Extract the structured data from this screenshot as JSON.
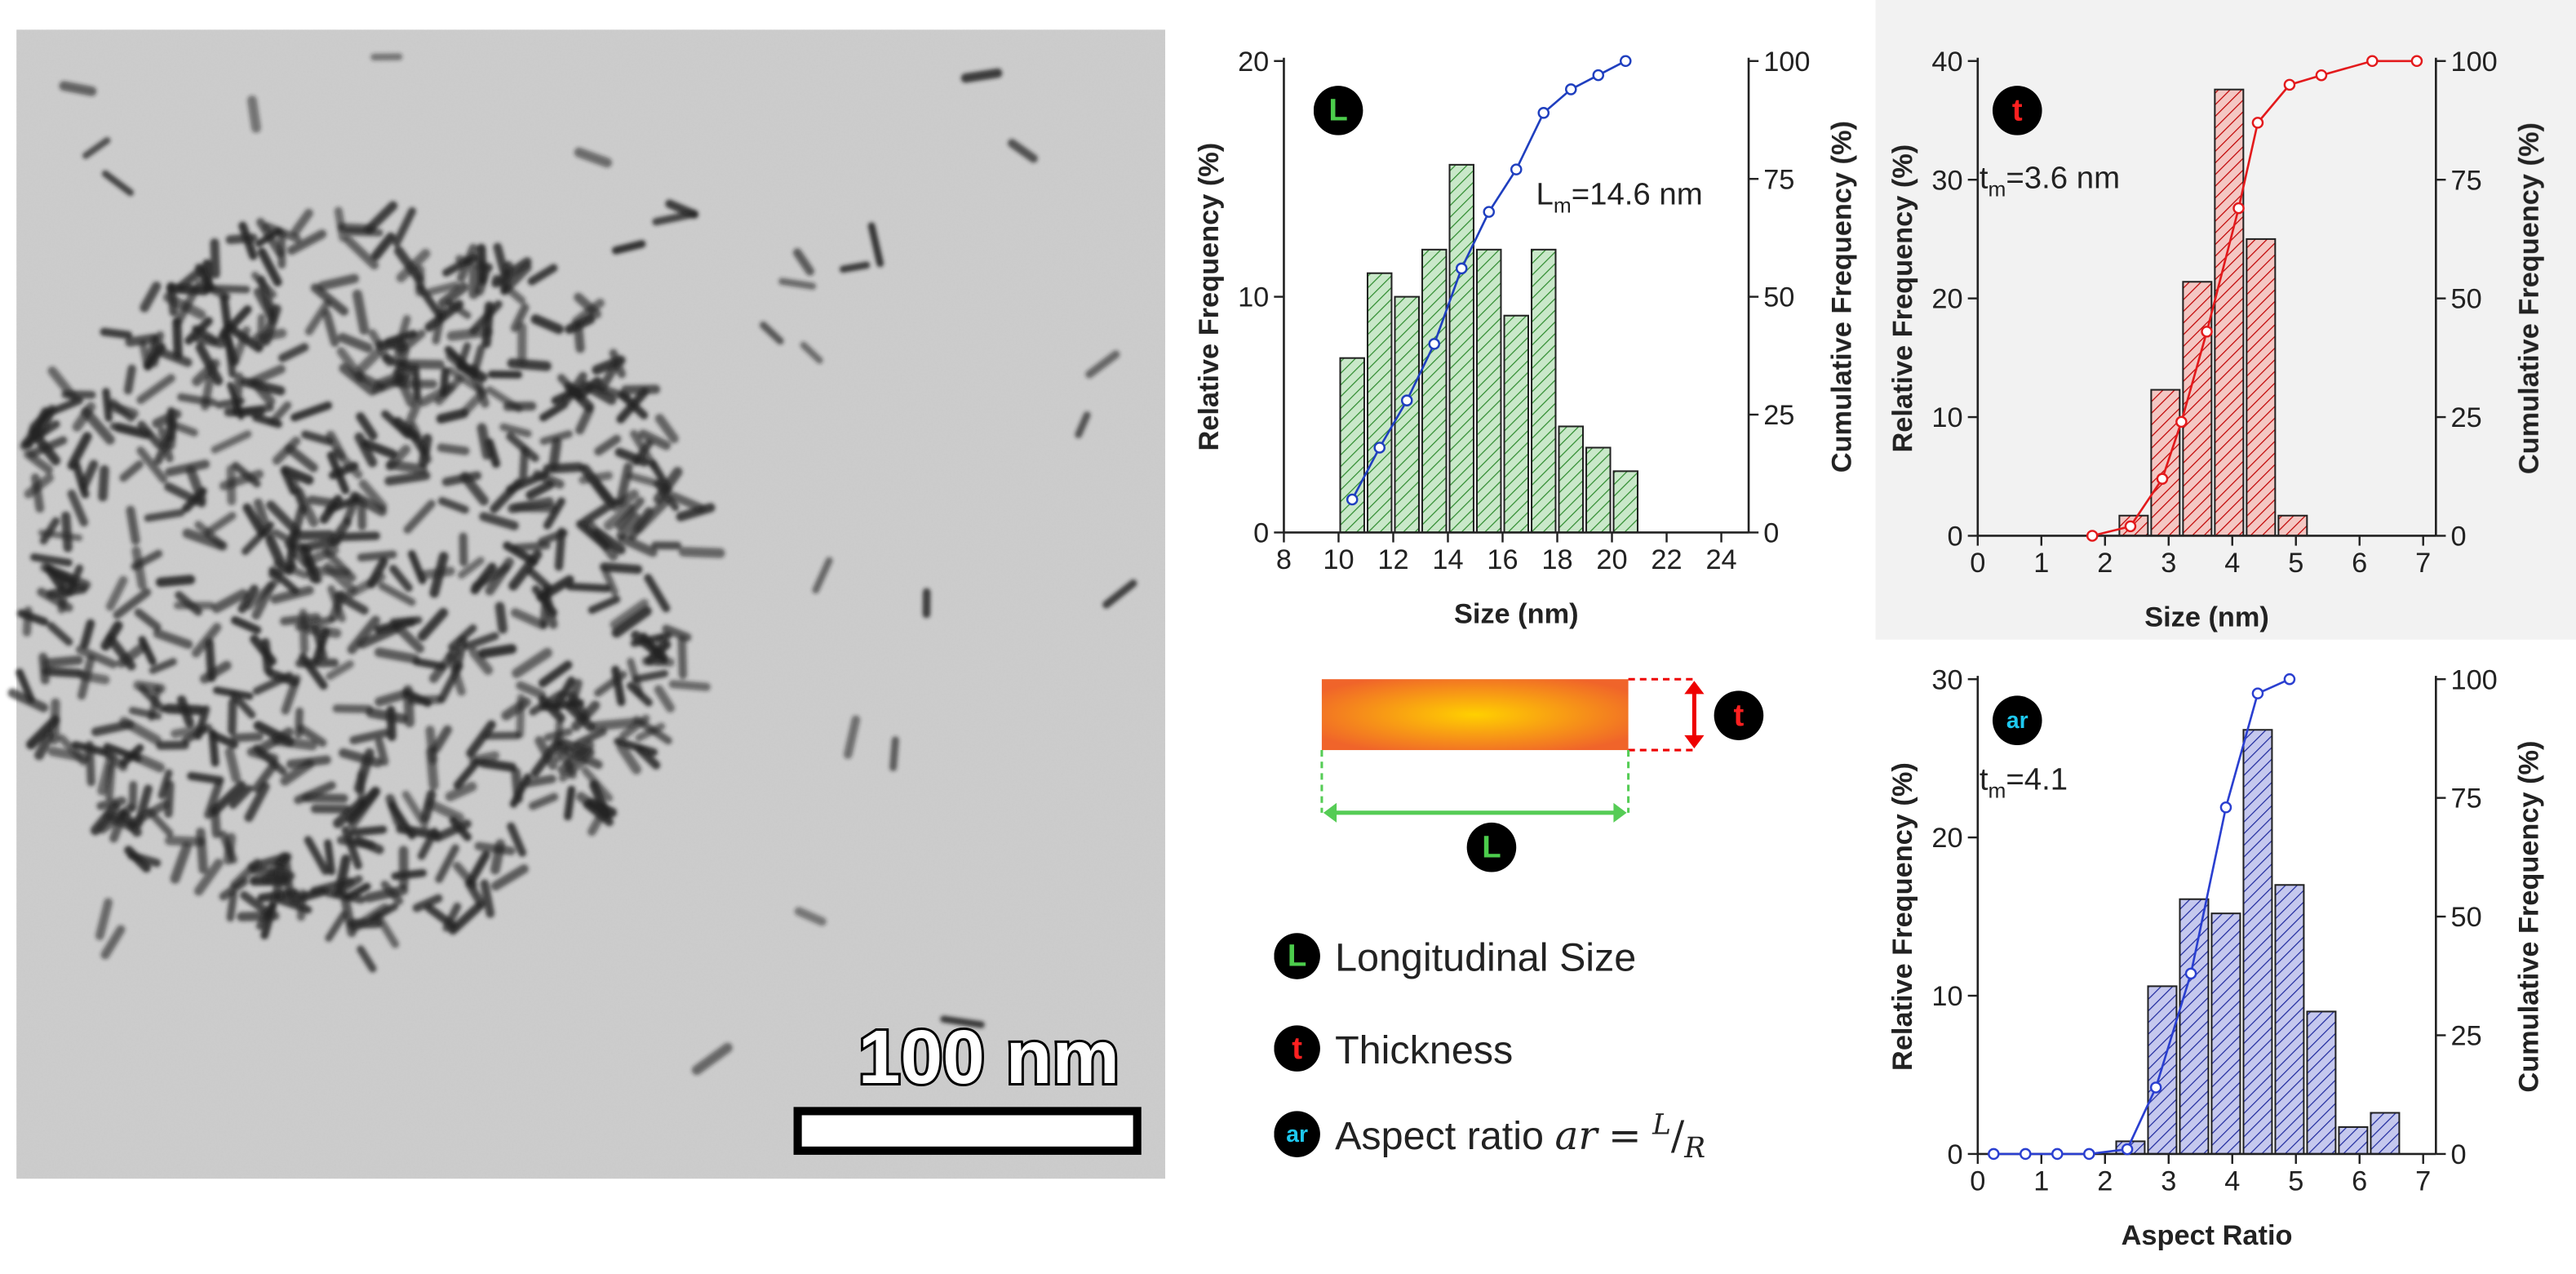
{
  "micrograph": {
    "scale_bar": "100 nm"
  },
  "chart_data": [
    {
      "type": "histogram",
      "badge": "L",
      "badge_color": "#4ccd4c",
      "annotation": {
        "symbol": "L",
        "subscript": "m",
        "text": "=14.6 nm"
      },
      "bins": [
        10,
        11,
        12,
        13,
        14,
        15,
        16,
        17,
        18,
        19,
        20,
        21
      ],
      "values": [
        7.4,
        11,
        10,
        12,
        15.6,
        12,
        9.2,
        12,
        4.5,
        3.6,
        2.6
      ],
      "color": "#c9e8c9",
      "edge_color": "#2e8b2e",
      "cumulative": {
        "x": [
          10.5,
          11.5,
          12.5,
          13.5,
          14.5,
          15.5,
          16.5,
          17.5,
          18.5,
          19.5,
          20.5
        ],
        "values": [
          7,
          18,
          28,
          40,
          56,
          68,
          77,
          89,
          94,
          97,
          100
        ],
        "axis": "y2",
        "color": "#1f3fbf"
      },
      "xlim": [
        8,
        25
      ],
      "xticks": [
        8,
        10,
        12,
        14,
        16,
        18,
        20,
        22,
        24
      ],
      "ylim": [
        0,
        20
      ],
      "yticks": [
        0,
        10,
        20
      ],
      "y2lim": [
        0,
        100
      ],
      "y2ticks": [
        0,
        25,
        50,
        75,
        100
      ],
      "xlabel": "Size (nm)",
      "ylabel": "Relative Frequency (%)",
      "y2label": "Cumulative Frequency (%)"
    },
    {
      "type": "histogram",
      "badge": "t",
      "badge_color": "#ff2020",
      "panel_color": "#f2f2f2",
      "annotation": {
        "symbol": "t",
        "subscript": "m",
        "text": "=3.6 nm"
      },
      "bins": [
        2.2,
        2.7,
        3.2,
        3.7,
        4.2,
        4.7,
        5.2
      ],
      "values": [
        1.7,
        12.3,
        21.4,
        37.6,
        25,
        1.7
      ],
      "color": "#f4c7c3",
      "edge_color": "#c00000",
      "cumulative": {
        "x": [
          1.8,
          2.4,
          2.9,
          3.2,
          3.6,
          4.1,
          4.4,
          4.9,
          5.4,
          6.2,
          6.9
        ],
        "values": [
          0,
          2,
          12,
          24,
          43,
          69,
          87,
          95,
          97,
          100,
          100
        ],
        "axis": "y2",
        "color": "#e31a1c"
      },
      "xlim": [
        0,
        7.2
      ],
      "xticks": [
        0,
        1,
        2,
        3,
        4,
        5,
        6,
        7
      ],
      "ylim": [
        0,
        40
      ],
      "yticks": [
        0,
        10,
        20,
        30,
        40
      ],
      "y2lim": [
        0,
        100
      ],
      "y2ticks": [
        0,
        25,
        50,
        75,
        100
      ],
      "xlabel": "Size (nm)",
      "ylabel": "Relative Frequency (%)",
      "y2label": "Cumulative Frequency (%)"
    },
    {
      "type": "histogram",
      "badge": "ar",
      "badge_color": "#1ec8f0",
      "annotation": {
        "symbol": "t",
        "subscript": "m",
        "text": "=4.1"
      },
      "bins": [
        2.15,
        2.65,
        3.15,
        3.65,
        4.15,
        4.65,
        5.15,
        5.65,
        6.15,
        6.65
      ],
      "values": [
        0.8,
        10.6,
        16.1,
        15.2,
        26.8,
        17,
        9,
        1.7,
        2.6
      ],
      "color": "#c5c8ee",
      "edge_color": "#1f2a9e",
      "cumulative": {
        "x": [
          0.25,
          0.75,
          1.25,
          1.75,
          2.35,
          2.8,
          3.35,
          3.9,
          4.4,
          4.9
        ],
        "values": [
          0,
          0,
          0,
          0,
          1,
          14,
          38,
          73,
          97,
          100
        ],
        "axis": "y2",
        "color": "#2a3fd0"
      },
      "xlim": [
        0,
        7.2
      ],
      "xticks": [
        0,
        1,
        2,
        3,
        4,
        5,
        6,
        7
      ],
      "ylim": [
        0,
        30
      ],
      "yticks": [
        0,
        10,
        20,
        30
      ],
      "y2lim": [
        0,
        100
      ],
      "y2ticks": [
        0,
        25,
        50,
        75,
        100
      ],
      "xlabel": "Aspect Ratio",
      "ylabel": "Relative Frequency (%)",
      "y2label": "Cumulative Frequency (%)"
    }
  ],
  "diagram": {
    "thickness_badge": "t",
    "length_badge": "L"
  },
  "legend": {
    "items": [
      {
        "badge": "L",
        "label": "Longitudinal Size"
      },
      {
        "badge": "t",
        "label": "Thickness"
      },
      {
        "badge": "ar",
        "label": "Aspect ratio",
        "formula": {
          "lhs": "ar",
          "eq": "=",
          "num": "L",
          "den": "R"
        }
      }
    ]
  }
}
